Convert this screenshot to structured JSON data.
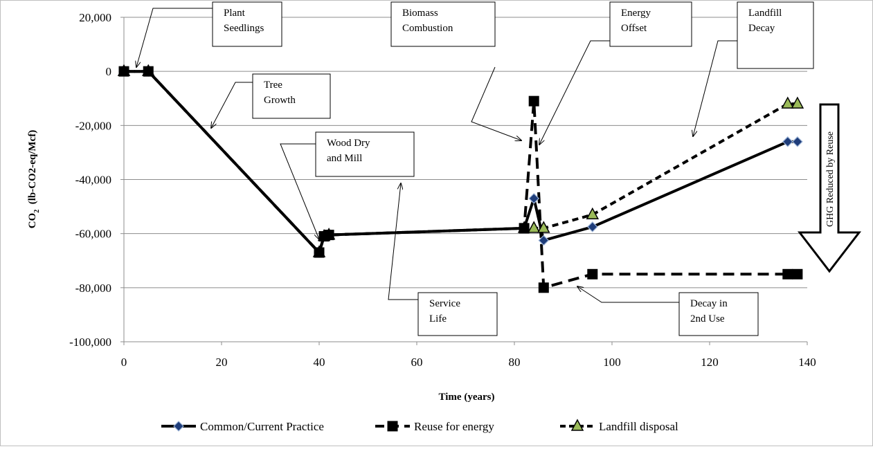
{
  "chart_data": {
    "type": "line",
    "xlabel": "Time (years)",
    "ylabel_main": "CO",
    "ylabel_sub": "2",
    "ylabel_rest": "  (lb-CO2-eq/Mcf)",
    "xlim": [
      0,
      140
    ],
    "ylim": [
      -100000,
      20000
    ],
    "x_ticks": [
      0,
      20,
      40,
      60,
      80,
      100,
      120,
      140
    ],
    "y_ticks": [
      20000,
      0,
      -20000,
      -40000,
      -60000,
      -80000,
      -100000
    ],
    "x_tick_labels": [
      "0",
      "20",
      "40",
      "60",
      "80",
      "100",
      "120",
      "140"
    ],
    "y_tick_labels": [
      "20,000",
      "0",
      "-20,000",
      "-40,000",
      "-60,000",
      "-80,000",
      "-100,000"
    ],
    "grid": "horizontal",
    "legend_position": "bottom",
    "series": [
      {
        "name": "Common/Current Practice",
        "line_style": "solid",
        "marker": "diamond",
        "marker_fill": "#1f3d7a",
        "color": "#000000",
        "points": [
          [
            0,
            0
          ],
          [
            5,
            0
          ],
          [
            40,
            -67000
          ],
          [
            41,
            -61000
          ],
          [
            42,
            -60500
          ],
          [
            82,
            -58000
          ],
          [
            84,
            -47000
          ],
          [
            86,
            -62500
          ],
          [
            96,
            -57500
          ],
          [
            136,
            -26000
          ],
          [
            138,
            -26000
          ]
        ]
      },
      {
        "name": "Reuse for energy",
        "line_style": "dashed",
        "marker": "square",
        "marker_fill": "#000000",
        "color": "#000000",
        "points": [
          [
            0,
            0
          ],
          [
            5,
            0
          ],
          [
            40,
            -67000
          ],
          [
            41,
            -61000
          ],
          [
            42,
            -60500
          ],
          [
            82,
            -58000
          ],
          [
            84,
            -11000
          ],
          [
            86,
            -80000
          ],
          [
            96,
            -75000
          ],
          [
            136,
            -75000
          ],
          [
            138,
            -75000
          ]
        ]
      },
      {
        "name": "Landfill disposal",
        "line_style": "short-dashed",
        "marker": "triangle",
        "marker_fill": "#9bbb59",
        "color": "#000000",
        "points": [
          [
            0,
            0
          ],
          [
            5,
            0
          ],
          [
            40,
            -67000
          ],
          [
            41,
            -61000
          ],
          [
            42,
            -60500
          ],
          [
            82,
            -58000
          ],
          [
            84,
            -58000
          ],
          [
            86,
            -58000
          ],
          [
            96,
            -53000
          ],
          [
            136,
            -12000
          ],
          [
            138,
            -12000
          ]
        ]
      }
    ],
    "annotations": [
      {
        "id": "plant-seedlings",
        "lines": [
          "Plant",
          "Seedlings"
        ]
      },
      {
        "id": "tree-growth",
        "lines": [
          "Tree",
          "Growth"
        ]
      },
      {
        "id": "wood-dry-mill",
        "lines": [
          "Wood Dry",
          "and Mill"
        ]
      },
      {
        "id": "biomass-combustion",
        "lines": [
          "Biomass",
          "Combustion"
        ]
      },
      {
        "id": "energy-offset",
        "lines": [
          "Energy",
          "Offset"
        ]
      },
      {
        "id": "landfill-decay",
        "lines": [
          "Landfill",
          "Decay"
        ]
      },
      {
        "id": "service-life",
        "lines": [
          "Service",
          "Life"
        ]
      },
      {
        "id": "decay-2nd-use",
        "lines": [
          "Decay in",
          "2nd Use"
        ]
      }
    ],
    "big_arrow_label": "GHG Reduced by Reuse"
  }
}
